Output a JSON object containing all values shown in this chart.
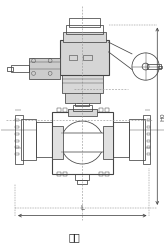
{
  "title": "电动",
  "dim_H": "H0",
  "dim_L": "L",
  "bg_color": "#ffffff",
  "lc": "#444444",
  "dc": "#999999",
  "figsize": [
    1.67,
    2.5
  ],
  "dpi": 100
}
